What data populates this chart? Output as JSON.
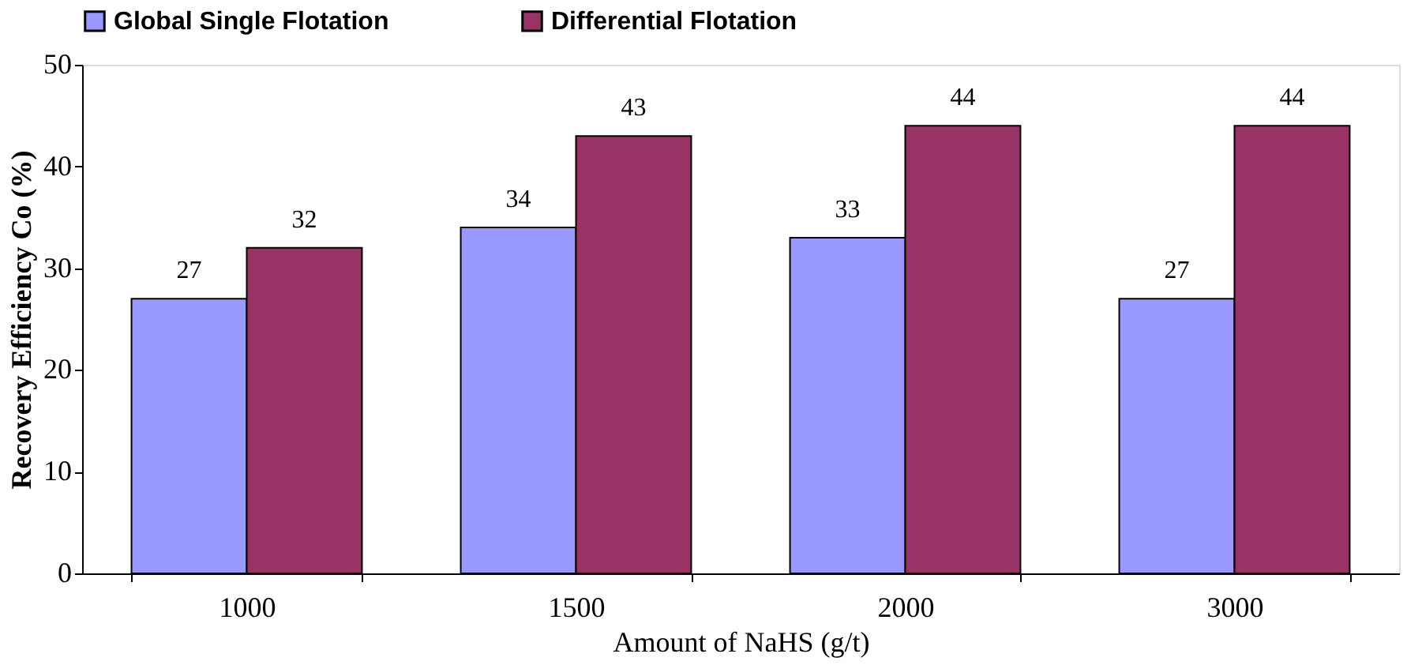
{
  "chart_data": {
    "type": "bar",
    "xlabel": "Amount of NaHS (g/t)",
    "ylabel": "Recovery Efficiency Co (%)",
    "categories": [
      "1000",
      "1500",
      "2000",
      "3000"
    ],
    "series": [
      {
        "name": "Global Single Flotation",
        "color": "#9999ff",
        "values": [
          27,
          34,
          33,
          27
        ]
      },
      {
        "name": "Differential Flotation",
        "color": "#993366",
        "values": [
          32,
          43,
          44,
          44
        ]
      }
    ],
    "ylim": [
      0,
      50
    ],
    "yticks": [
      0,
      10,
      20,
      30,
      40,
      50
    ],
    "grid": false,
    "legend": "top",
    "data_labels": true
  }
}
